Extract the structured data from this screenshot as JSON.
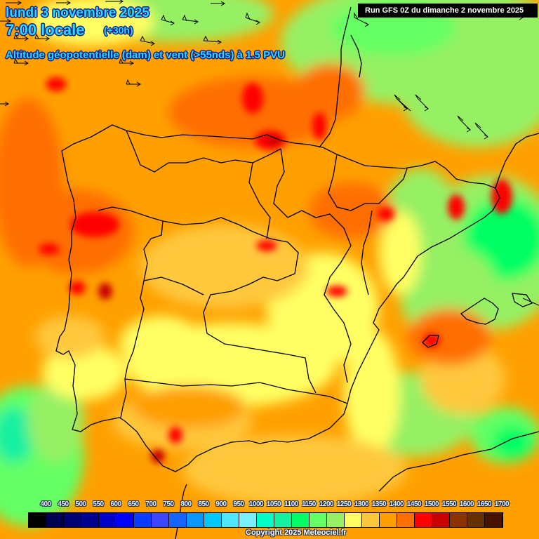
{
  "header": {
    "date": "lundi 3 novembre 2025",
    "time": "7:00 locale",
    "lead": "(+30h)",
    "parameter": "Altitude géopotentielle (dam) et vent (>55nds) à 1.5 PVU",
    "run": "Run GFS 0Z du dimanche 2 novembre 2025"
  },
  "legend": {
    "labels": [
      "400",
      "450",
      "500",
      "550",
      "600",
      "650",
      "700",
      "750",
      "800",
      "850",
      "900",
      "950",
      "1000",
      "1050",
      "1100",
      "1150",
      "1200",
      "1250",
      "1300",
      "1350",
      "1400",
      "1450",
      "1500",
      "1550",
      "1600",
      "1650",
      "1700"
    ],
    "colors": [
      "#000000",
      "#000050",
      "#000070",
      "#000090",
      "#0000c8",
      "#0000ff",
      "#0a3cff",
      "#3c46ff",
      "#1464ff",
      "#0a96ff",
      "#00c8ff",
      "#50e6ff",
      "#78f0ff",
      "#00ffc8",
      "#14f0a0",
      "#00ff64",
      "#64ff64",
      "#96f064",
      "#ffff64",
      "#ffc83c",
      "#ffa000",
      "#ff6e00",
      "#ff0000",
      "#c80000",
      "#8c3200",
      "#643200",
      "#461400"
    ]
  },
  "footer": {
    "copyright": "Copyright 2025 Meteociel.fr"
  },
  "map": {
    "region": "Iberian Peninsula and Balearic Islands",
    "field_colors": {
      "red": "#ff0000",
      "dark_red": "#c80000",
      "orange_dark": "#ff6e00",
      "orange": "#ffa000",
      "light_orange": "#ffc83c",
      "yellow": "#ffff64",
      "light_green": "#96f064",
      "green": "#64ff64",
      "bright_green": "#00ff64",
      "turquoise": "#14f0a0"
    }
  }
}
